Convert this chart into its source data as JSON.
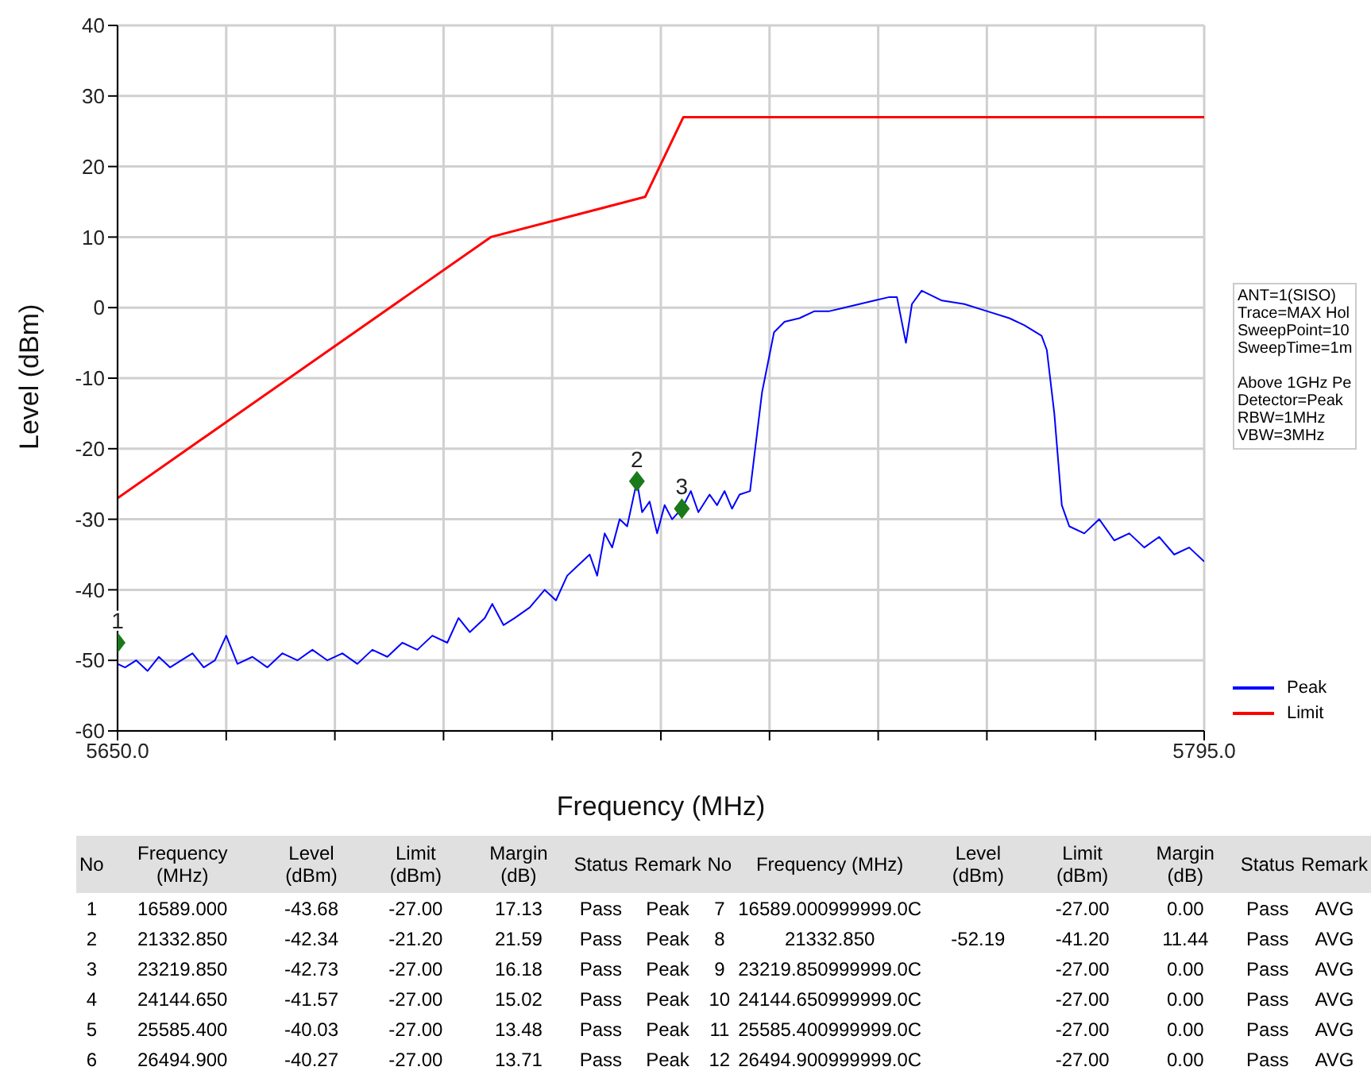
{
  "chart_data": {
    "type": "line",
    "xlabel": "Frequency (MHz)",
    "ylabel": "Level (dBm)",
    "xlim": [
      5650,
      5795
    ],
    "xticks": [
      {
        "value": 5650,
        "label": "5650.0"
      },
      {
        "value": 5664.5,
        "label": null
      },
      {
        "value": 5679,
        "label": null
      },
      {
        "value": 5693.5,
        "label": null
      },
      {
        "value": 5708,
        "label": null
      },
      {
        "value": 5722.5,
        "label": null
      },
      {
        "value": 5737,
        "label": null
      },
      {
        "value": 5751.5,
        "label": null
      },
      {
        "value": 5766,
        "label": null
      },
      {
        "value": 5780.5,
        "label": null
      },
      {
        "value": 5795,
        "label": "5795.0"
      }
    ],
    "ylim": [
      -60,
      40
    ],
    "yticks": [
      -60,
      -50,
      -40,
      -30,
      -20,
      -10,
      0,
      10,
      20,
      30,
      40
    ],
    "grid": true,
    "legend": "bottom right",
    "series": [
      {
        "name": "Peak",
        "color": "#0000ff",
        "x": [
          5650,
          5651,
          5652.5,
          5654,
          5655.5,
          5657,
          5658.5,
          5660,
          5661.5,
          5663,
          5664.5,
          5666,
          5668,
          5670,
          5672,
          5674,
          5676,
          5678,
          5680,
          5682,
          5684,
          5686,
          5688,
          5690,
          5692,
          5694,
          5695.5,
          5697,
          5699,
          5700,
          5701.5,
          5703,
          5705,
          5707,
          5708.5,
          5710,
          5711.5,
          5713,
          5714,
          5715,
          5716,
          5717,
          5718,
          5719.3,
          5720,
          5721,
          5722,
          5723,
          5724,
          5725.3,
          5726.5,
          5727.5,
          5729,
          5730,
          5731,
          5732,
          5733,
          5734.4,
          5736,
          5737.6,
          5739,
          5741,
          5743,
          5745,
          5747,
          5749,
          5751,
          5753,
          5754,
          5755.2,
          5756,
          5757.3,
          5760,
          5763,
          5766,
          5769,
          5771,
          5773.3,
          5774,
          5775,
          5776,
          5777,
          5779,
          5781,
          5783,
          5785,
          5787,
          5789,
          5791,
          5793,
          5795
        ],
        "values": [
          -50.5,
          -51,
          -50,
          -51.5,
          -49.5,
          -51,
          -50,
          -49,
          -51,
          -50,
          -46.5,
          -50.5,
          -49.5,
          -51,
          -49,
          -50,
          -48.5,
          -50,
          -49,
          -50.5,
          -48.5,
          -49.5,
          -47.5,
          -48.5,
          -46.5,
          -47.5,
          -44,
          -46,
          -44,
          -42,
          -45,
          -44,
          -42.5,
          -40,
          -41.5,
          -38,
          -36.5,
          -35,
          -38,
          -32,
          -34,
          -30,
          -31,
          -24.6,
          -29,
          -27.5,
          -32,
          -28,
          -30,
          -28.5,
          -26,
          -29,
          -26.5,
          -28,
          -26,
          -28.5,
          -26.5,
          -26,
          -12,
          -3.5,
          -2,
          -1.5,
          -0.5,
          -0.5,
          0,
          0.5,
          1,
          1.5,
          1.5,
          -5,
          0.5,
          2.4,
          1,
          0.5,
          -0.5,
          -1.5,
          -2.5,
          -4,
          -6,
          -15,
          -28,
          -31,
          -32,
          -30,
          -33,
          -32,
          -34,
          -32.5,
          -35,
          -34,
          -36
        ]
      },
      {
        "name": "Limit",
        "color": "#ff0000",
        "x": [
          5650,
          5699.8,
          5720.4,
          5725.5,
          5795
        ],
        "values": [
          -27,
          10,
          15.7,
          27,
          27
        ]
      },
      {
        "type": "scatter",
        "color": "#1a7a1a",
        "marker": "diamond",
        "x": [
          5650,
          5719.3,
          5725.3
        ],
        "values": [
          -47.5,
          -24.6,
          -28.5
        ]
      }
    ],
    "annotations": [
      {
        "text": "1",
        "x": 5650,
        "y": -47.5
      },
      {
        "text": "2",
        "x": 5719.3,
        "y": -24.6
      },
      {
        "text": "3",
        "x": 5725.3,
        "y": -28.5
      },
      "ANT=1(SISO)\nTrace=MAX Hol\nSweepPoint=10\nSweepTime=1m\n\nAbove 1GHz Pe\nDetector=Peak\nRBW=1MHz\nVBW=3MHz",
      "No\tFrequency (MHz)\tLevel (dBm)\tLimit (dBm)\tMargin (dB)\tStatus\tRemark\tNo\tFrequency (MHz)\tLevel (dBm)\tLimit (dBm)\tMargin (dB)\tStatus\tRemark",
      "1\t16589.000\t-43.68\t-27.00\t17.13\tPass\tPeak\t7\t16589.000999999.0C\t\t-27.00\t0.00\tPass\tAVG",
      "2\t21332.850\t-42.34\t-21.20\t21.59\tPass\tPeak\t8\t21332.850\t-52.19\t-41.20\t11.44\tPass\tAVG",
      "3\t23219.850\t-42.73\t-27.00\t16.18\tPass\tPeak\t9\t23219.850999999.0C\t\t-27.00\t0.00\tPass\tAVG",
      "4\t24144.650\t-41.57\t-27.00\t15.02\tPass\tPeak\t10\t24144.650999999.0C\t\t-27.00\t0.00\tPass\tAVG",
      "5\t25585.400\t-40.03\t-27.00\t13.48\tPass\tPeak\t11\t25585.400999999.0C\t\t-27.00\t0.00\tPass\tAVG",
      "6\t26494.900\t-40.27\t-27.00\t13.71\tPass\tPeak\t12\t26494.900999999.0C\t\t-27.00\t0.00\tPass\tAVG"
    ]
  }
}
